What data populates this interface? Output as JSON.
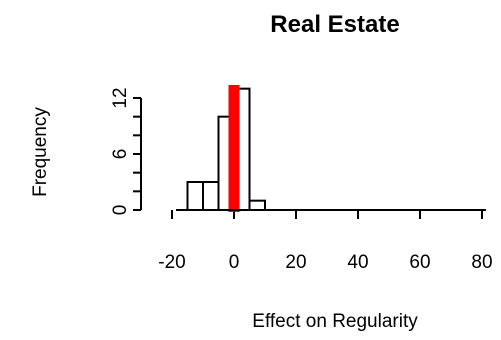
{
  "chart_data": {
    "type": "bar",
    "title": "Real Estate",
    "xlabel": "Effect on Regularity",
    "ylabel": "Frequency",
    "xlim": [
      -20,
      80
    ],
    "ylim": [
      0,
      12
    ],
    "x_ticks": [
      -20,
      0,
      20,
      40,
      60,
      80
    ],
    "y_ticks": [
      0,
      6,
      12
    ],
    "bins": [
      {
        "start": -15,
        "end": -10,
        "count": 3
      },
      {
        "start": -10,
        "end": -5,
        "count": 3
      },
      {
        "start": -5,
        "end": 0,
        "count": 10
      },
      {
        "start": 0,
        "end": 5,
        "count": 13
      },
      {
        "start": 5,
        "end": 10,
        "count": 1
      }
    ],
    "reference_line": {
      "x": 0,
      "color": "#ff0000"
    },
    "grid": false
  }
}
